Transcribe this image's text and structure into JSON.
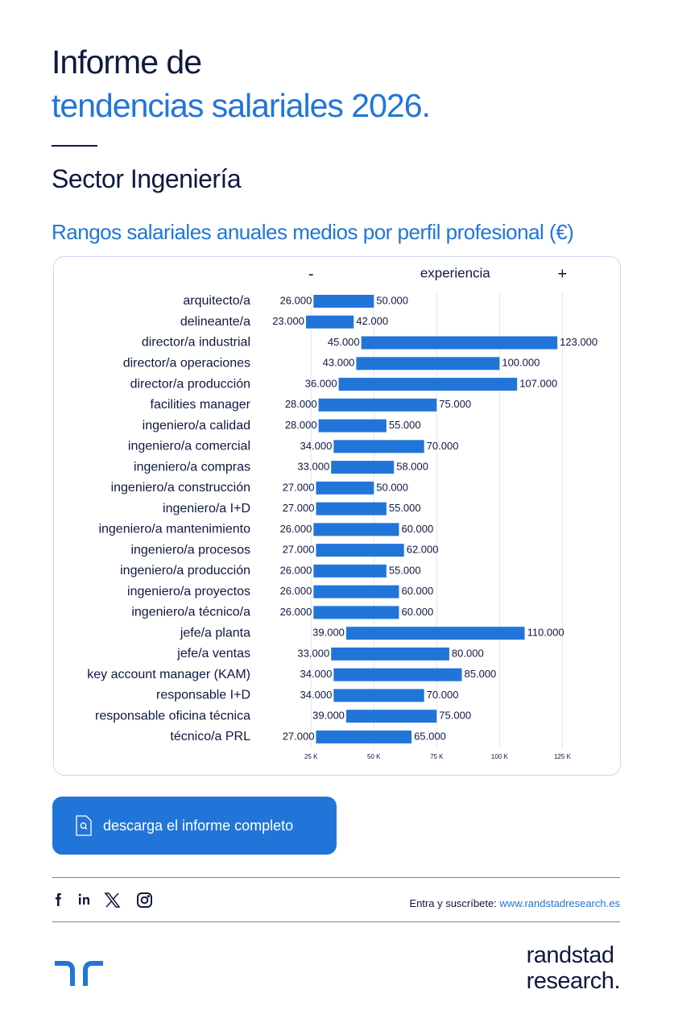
{
  "header": {
    "title_line1": "Informe de",
    "title_line2": "tendencias salariales 2026.",
    "sector": "Sector Ingeniería"
  },
  "chart_data": {
    "type": "range-bar",
    "title": "Rangos salariales anuales medios por perfil profesional (€)",
    "x_label": "experiencia",
    "annotations": [
      "-",
      "+"
    ],
    "color": "#2175d9",
    "categories": [
      "arquitecto/a",
      "delineante/a",
      "director/a industrial",
      "director/a operaciones",
      "director/a producción",
      "facilities manager",
      "ingeniero/a calidad",
      "ingeniero/a comercial",
      "ingeniero/a compras",
      "ingeniero/a construcción",
      "ingeniero/a I+D",
      "ingeniero/a mantenimiento",
      "ingeniero/a procesos",
      "ingeniero/a producción",
      "ingeniero/a proyectos",
      "ingeniero/a técnico/a",
      "jefe/a planta",
      "jefe/a ventas",
      "key account manager (KAM)",
      "responsable I+D",
      "responsable oficina técnica",
      "técnico/a PRL"
    ],
    "values": [
      [
        26000,
        50000
      ],
      [
        23000,
        42000
      ],
      [
        45000,
        123000
      ],
      [
        43000,
        100000
      ],
      [
        36000,
        107000
      ],
      [
        28000,
        75000
      ],
      [
        28000,
        55000
      ],
      [
        34000,
        70000
      ],
      [
        33000,
        58000
      ],
      [
        27000,
        50000
      ],
      [
        27000,
        55000
      ],
      [
        26000,
        60000
      ],
      [
        27000,
        62000
      ],
      [
        26000,
        55000
      ],
      [
        26000,
        60000
      ],
      [
        26000,
        60000
      ],
      [
        39000,
        110000
      ],
      [
        33000,
        80000
      ],
      [
        34000,
        85000
      ],
      [
        34000,
        70000
      ],
      [
        39000,
        75000
      ],
      [
        27000,
        65000
      ]
    ],
    "value_labels": [
      [
        "26.000",
        "50.000"
      ],
      [
        "23.000",
        "42.000"
      ],
      [
        "45.000",
        "123.000"
      ],
      [
        "43.000",
        "100.000"
      ],
      [
        "36.000",
        "107.000"
      ],
      [
        "28.000",
        "75.000"
      ],
      [
        "28.000",
        "55.000"
      ],
      [
        "34.000",
        "70.000"
      ],
      [
        "33.000",
        "58.000"
      ],
      [
        "27.000",
        "50.000"
      ],
      [
        "27.000",
        "55.000"
      ],
      [
        "26.000",
        "60.000"
      ],
      [
        "27.000",
        "62.000"
      ],
      [
        "26.000",
        "55.000"
      ],
      [
        "26.000",
        "60.000"
      ],
      [
        "26.000",
        "60.000"
      ],
      [
        "39.000",
        "110.000"
      ],
      [
        "33.000",
        "80.000"
      ],
      [
        "34.000",
        "85.000"
      ],
      [
        "34.000",
        "70.000"
      ],
      [
        "39.000",
        "75.000"
      ],
      [
        "27.000",
        "65.000"
      ]
    ],
    "xlim": [
      15000,
      130000
    ],
    "xticks": [
      {
        "value": 25000,
        "label": "25 K"
      },
      {
        "value": 50000,
        "label": "50 K"
      },
      {
        "value": 75000,
        "label": "75 K"
      },
      {
        "value": 100000,
        "label": "100 K"
      },
      {
        "value": 125000,
        "label": "125 K"
      }
    ],
    "grid": true
  },
  "button": {
    "label": "descarga el informe completo"
  },
  "footer": {
    "subscribe": "Entra y suscríbete:",
    "url": "www.randstadresearch.es",
    "brand_line1": "randstad",
    "brand_line2": "research."
  }
}
